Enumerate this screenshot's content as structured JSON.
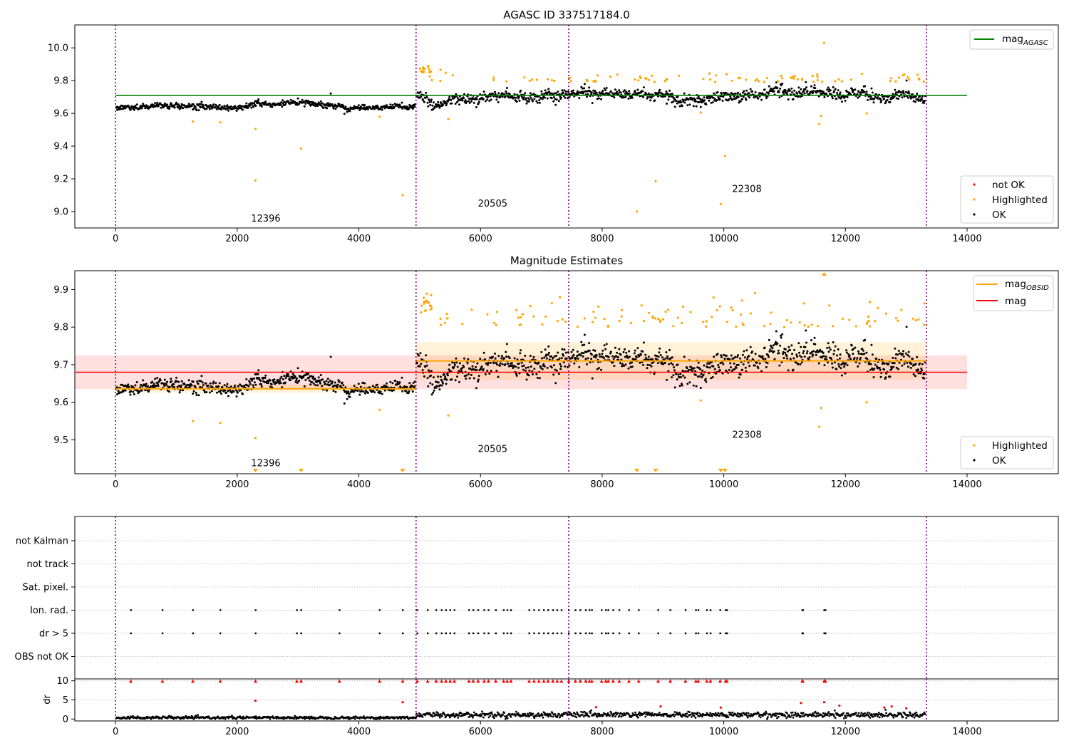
{
  "chart_data": [
    {
      "type": "scatter",
      "title": "AGASC ID 337517184.0",
      "xlabel": "",
      "ylabel": "",
      "xlim": [
        -670,
        15500
      ],
      "ylim": [
        8.9,
        10.14
      ],
      "xticks": [
        0,
        2000,
        4000,
        6000,
        8000,
        10000,
        12000,
        14000
      ],
      "yticks": [
        9.0,
        9.2,
        9.4,
        9.6,
        9.8,
        10.0
      ],
      "ytick_labels": [
        "9.0",
        "9.2",
        "9.4",
        "9.6",
        "9.8",
        "10.0"
      ],
      "obs_boundaries": [
        0,
        4940,
        7450,
        13330
      ],
      "obsid_labels": [
        {
          "x": 2470,
          "y": 8.94,
          "text": "12396"
        },
        {
          "x": 6200,
          "y": 9.03,
          "text": "20505"
        },
        {
          "x": 10380,
          "y": 9.12,
          "text": "22308"
        }
      ],
      "hlines": [
        {
          "name": "mag_AGASC",
          "y": 9.71,
          "x": [
            0,
            14000
          ],
          "color": "#008000"
        }
      ],
      "segments": [
        {
          "x_start": 0,
          "x_end": 4940,
          "center": 9.636,
          "spread": 0.016
        },
        {
          "x_start": 4940,
          "x_end": 13330,
          "center": 9.705,
          "spread": 0.03
        }
      ],
      "highlighted_outliers": [
        {
          "x": 1270,
          "y": 9.55
        },
        {
          "x": 1720,
          "y": 9.545
        },
        {
          "x": 2300,
          "y": 9.505
        },
        {
          "x": 2300,
          "y": 9.19
        },
        {
          "x": 3050,
          "y": 9.385
        },
        {
          "x": 4720,
          "y": 9.1
        },
        {
          "x": 4340,
          "y": 9.58
        },
        {
          "x": 5470,
          "y": 9.565
        },
        {
          "x": 8570,
          "y": 9.0
        },
        {
          "x": 8880,
          "y": 9.185
        },
        {
          "x": 9950,
          "y": 9.045
        },
        {
          "x": 10020,
          "y": 9.34
        },
        {
          "x": 11650,
          "y": 10.03
        },
        {
          "x": 11570,
          "y": 9.535
        },
        {
          "x": 12350,
          "y": 9.6
        },
        {
          "x": 9620,
          "y": 9.605
        },
        {
          "x": 11600,
          "y": 9.585
        }
      ],
      "legends": [
        {
          "position": "top-right",
          "entries": [
            {
              "label": "mag",
              "subscript": "AGASC",
              "color": "#008000",
              "kind": "line"
            }
          ]
        },
        {
          "position": "lower-right",
          "entries": [
            {
              "label": "not OK",
              "color": "#ff0000",
              "kind": "dot"
            },
            {
              "label": "Highlighted",
              "color": "#ffa500",
              "kind": "dot"
            },
            {
              "label": "OK",
              "color": "#000000",
              "kind": "dot"
            }
          ]
        }
      ]
    },
    {
      "type": "scatter",
      "title": "Magnitude Estimates",
      "xlabel": "",
      "ylabel": "",
      "xlim": [
        -670,
        15500
      ],
      "ylim": [
        9.41,
        9.95
      ],
      "xticks": [
        0,
        2000,
        4000,
        6000,
        8000,
        10000,
        12000,
        14000
      ],
      "yticks": [
        9.5,
        9.6,
        9.7,
        9.8,
        9.9
      ],
      "ytick_labels": [
        "9.5",
        "9.6",
        "9.7",
        "9.8",
        "9.9"
      ],
      "obs_boundaries": [
        0,
        4940,
        7450,
        13330
      ],
      "obsid_labels": [
        {
          "x": 2470,
          "y": 9.43,
          "text": "12396"
        },
        {
          "x": 6200,
          "y": 9.468,
          "text": "20505"
        },
        {
          "x": 10380,
          "y": 9.506,
          "text": "22308"
        }
      ],
      "mag": 9.68,
      "mag_band": [
        9.635,
        9.725
      ],
      "mag_obsid": [
        {
          "x_start": 0,
          "x_end": 4940,
          "mag": 9.636,
          "band": [
            9.626,
            9.648
          ]
        },
        {
          "x_start": 4940,
          "x_end": 13330,
          "mag": 9.71,
          "band": [
            9.66,
            9.76
          ]
        }
      ],
      "below_range_markers": [
        2300,
        3050,
        4720,
        8570,
        8880,
        9950,
        10020
      ],
      "above_range_markers": [
        11650
      ],
      "legends": [
        {
          "position": "top-right",
          "entries": [
            {
              "label": "mag",
              "subscript": "OBSID",
              "color": "#ffa500",
              "kind": "line"
            },
            {
              "label": "mag",
              "color": "#ff0000",
              "kind": "line"
            }
          ]
        },
        {
          "position": "lower-right",
          "entries": [
            {
              "label": "Highlighted",
              "color": "#ffa500",
              "kind": "dot"
            },
            {
              "label": "OK",
              "color": "#000000",
              "kind": "dot"
            }
          ]
        }
      ]
    },
    {
      "type": "scatter",
      "title": "",
      "xlabel": "",
      "ylabel": "",
      "xlim": [
        -670,
        15500
      ],
      "flag_rows": [
        "not Kalman",
        "not track",
        "Sat. pixel.",
        "Ion. rad.",
        "dr > 5",
        "OBS not OK"
      ],
      "flag_events_x": [
        250,
        770,
        1270,
        1720,
        2300,
        2980,
        3050,
        3680,
        4340,
        4720,
        4960,
        5130,
        5270,
        5360,
        5430,
        5500,
        5570,
        5810,
        5880,
        5960,
        6060,
        6130,
        6250,
        6380,
        6440,
        6500,
        6800,
        6880,
        6960,
        7040,
        7110,
        7190,
        7260,
        7330,
        7450,
        7560,
        7640,
        7730,
        7790,
        7830,
        7990,
        8060,
        8100,
        8180,
        8280,
        8440,
        8600,
        8920,
        9120,
        9370,
        9540,
        9580,
        9720,
        9780,
        9940,
        10030,
        10050,
        11290,
        11300,
        11650,
        11670
      ],
      "obs_boundaries": [
        0,
        4940,
        7450,
        13330
      ]
    },
    {
      "type": "scatter",
      "title": "",
      "xlabel": "",
      "ylabel": "dr",
      "xlim": [
        -670,
        15500
      ],
      "ylim": [
        -0.5,
        10.5
      ],
      "xticks": [
        0,
        2000,
        4000,
        6000,
        8000,
        10000,
        12000,
        14000
      ],
      "yticks": [
        0,
        5,
        10
      ],
      "ytick_labels": [
        "0",
        "5",
        "10"
      ],
      "obs_boundaries": [
        0,
        4940,
        7450,
        13330
      ],
      "dr_outliers": [
        {
          "x": 2300,
          "y": 4.8
        },
        {
          "x": 4720,
          "y": 4.4
        },
        {
          "x": 7900,
          "y": 3.1
        },
        {
          "x": 8960,
          "y": 3.3
        },
        {
          "x": 9950,
          "y": 3.0
        },
        {
          "x": 11270,
          "y": 4.2
        },
        {
          "x": 11650,
          "y": 4.4
        },
        {
          "x": 11900,
          "y": 3.5
        },
        {
          "x": 12640,
          "y": 3.0
        },
        {
          "x": 12760,
          "y": 3.3
        },
        {
          "x": 13000,
          "y": 2.8
        }
      ]
    }
  ]
}
